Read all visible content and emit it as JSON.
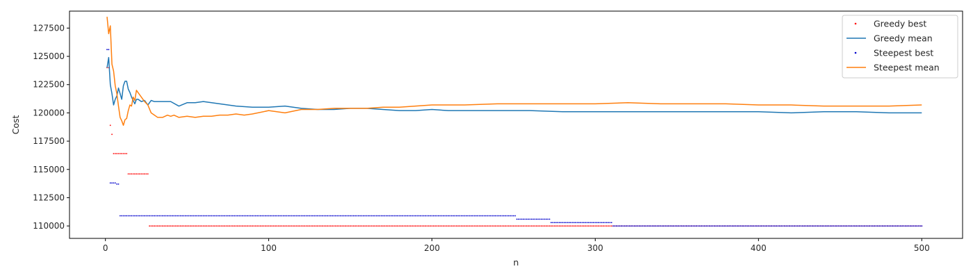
{
  "chart_data": {
    "type": "line",
    "title": "",
    "xlabel": "n",
    "ylabel": "Cost",
    "xlim": [
      -22,
      525
    ],
    "ylim": [
      108900,
      129000
    ],
    "xticks": [
      0,
      100,
      200,
      300,
      400,
      500
    ],
    "yticks": [
      110000,
      112500,
      115000,
      117500,
      120000,
      122500,
      125000,
      127500
    ],
    "grid": false,
    "legend_position": "top-right",
    "series": [
      {
        "name": "Greedy best",
        "kind": "points",
        "color": "#ff0000",
        "segments": [
          [
            1,
            1,
            124000
          ],
          [
            2,
            2,
            124000
          ],
          [
            3,
            3,
            118900
          ],
          [
            4,
            4,
            118100
          ],
          [
            5,
            13,
            116400
          ],
          [
            14,
            26,
            114600
          ],
          [
            27,
            500,
            110000
          ]
        ]
      },
      {
        "name": "Greedy mean",
        "kind": "line",
        "color": "#1f77b4",
        "points": [
          [
            1,
            124000
          ],
          [
            2,
            124900
          ],
          [
            3,
            122500
          ],
          [
            4,
            121700
          ],
          [
            5,
            120700
          ],
          [
            6,
            121200
          ],
          [
            7,
            121500
          ],
          [
            8,
            122200
          ],
          [
            9,
            121700
          ],
          [
            10,
            121200
          ],
          [
            11,
            122400
          ],
          [
            12,
            122800
          ],
          [
            13,
            122800
          ],
          [
            14,
            122100
          ],
          [
            15,
            121800
          ],
          [
            16,
            121400
          ],
          [
            17,
            121100
          ],
          [
            18,
            120800
          ],
          [
            19,
            121200
          ],
          [
            20,
            121200
          ],
          [
            22,
            121000
          ],
          [
            24,
            121100
          ],
          [
            26,
            120700
          ],
          [
            28,
            121100
          ],
          [
            30,
            121000
          ],
          [
            35,
            121000
          ],
          [
            40,
            121000
          ],
          [
            45,
            120600
          ],
          [
            50,
            120900
          ],
          [
            55,
            120900
          ],
          [
            60,
            121000
          ],
          [
            65,
            120900
          ],
          [
            70,
            120800
          ],
          [
            80,
            120600
          ],
          [
            90,
            120500
          ],
          [
            100,
            120500
          ],
          [
            110,
            120600
          ],
          [
            120,
            120400
          ],
          [
            130,
            120300
          ],
          [
            140,
            120300
          ],
          [
            150,
            120400
          ],
          [
            160,
            120400
          ],
          [
            170,
            120300
          ],
          [
            180,
            120200
          ],
          [
            190,
            120200
          ],
          [
            200,
            120300
          ],
          [
            210,
            120200
          ],
          [
            220,
            120200
          ],
          [
            240,
            120200
          ],
          [
            260,
            120200
          ],
          [
            280,
            120100
          ],
          [
            300,
            120100
          ],
          [
            320,
            120100
          ],
          [
            340,
            120100
          ],
          [
            360,
            120100
          ],
          [
            380,
            120100
          ],
          [
            400,
            120100
          ],
          [
            420,
            120000
          ],
          [
            440,
            120100
          ],
          [
            460,
            120100
          ],
          [
            480,
            120000
          ],
          [
            500,
            120000
          ]
        ]
      },
      {
        "name": "Steepest best",
        "kind": "points",
        "color": "#0000cc",
        "segments": [
          [
            1,
            2,
            125600
          ],
          [
            3,
            6,
            113800
          ],
          [
            7,
            8,
            113700
          ],
          [
            9,
            251,
            110900
          ],
          [
            252,
            272,
            110600
          ],
          [
            273,
            310,
            110300
          ],
          [
            311,
            500,
            110000
          ]
        ]
      },
      {
        "name": "Steepest mean",
        "kind": "line",
        "color": "#ff7f0e",
        "points": [
          [
            1,
            128500
          ],
          [
            2,
            127000
          ],
          [
            3,
            127700
          ],
          [
            4,
            124300
          ],
          [
            5,
            123700
          ],
          [
            6,
            122400
          ],
          [
            7,
            121700
          ],
          [
            8,
            120600
          ],
          [
            9,
            119600
          ],
          [
            10,
            119300
          ],
          [
            11,
            118900
          ],
          [
            12,
            119400
          ],
          [
            13,
            119500
          ],
          [
            14,
            120200
          ],
          [
            15,
            120700
          ],
          [
            16,
            120600
          ],
          [
            17,
            121400
          ],
          [
            18,
            121100
          ],
          [
            19,
            122000
          ],
          [
            20,
            121800
          ],
          [
            22,
            121400
          ],
          [
            24,
            121000
          ],
          [
            26,
            120700
          ],
          [
            28,
            120000
          ],
          [
            30,
            119800
          ],
          [
            32,
            119600
          ],
          [
            35,
            119600
          ],
          [
            38,
            119800
          ],
          [
            40,
            119700
          ],
          [
            42,
            119800
          ],
          [
            45,
            119600
          ],
          [
            50,
            119700
          ],
          [
            55,
            119600
          ],
          [
            60,
            119700
          ],
          [
            65,
            119700
          ],
          [
            70,
            119800
          ],
          [
            75,
            119800
          ],
          [
            80,
            119900
          ],
          [
            85,
            119800
          ],
          [
            90,
            119900
          ],
          [
            100,
            120200
          ],
          [
            110,
            120000
          ],
          [
            120,
            120300
          ],
          [
            130,
            120300
          ],
          [
            140,
            120400
          ],
          [
            150,
            120400
          ],
          [
            160,
            120400
          ],
          [
            170,
            120500
          ],
          [
            180,
            120500
          ],
          [
            190,
            120600
          ],
          [
            200,
            120700
          ],
          [
            210,
            120700
          ],
          [
            220,
            120700
          ],
          [
            240,
            120800
          ],
          [
            260,
            120800
          ],
          [
            280,
            120800
          ],
          [
            300,
            120800
          ],
          [
            320,
            120900
          ],
          [
            340,
            120800
          ],
          [
            360,
            120800
          ],
          [
            380,
            120800
          ],
          [
            400,
            120700
          ],
          [
            420,
            120700
          ],
          [
            440,
            120600
          ],
          [
            460,
            120600
          ],
          [
            480,
            120600
          ],
          [
            500,
            120700
          ]
        ]
      }
    ]
  }
}
